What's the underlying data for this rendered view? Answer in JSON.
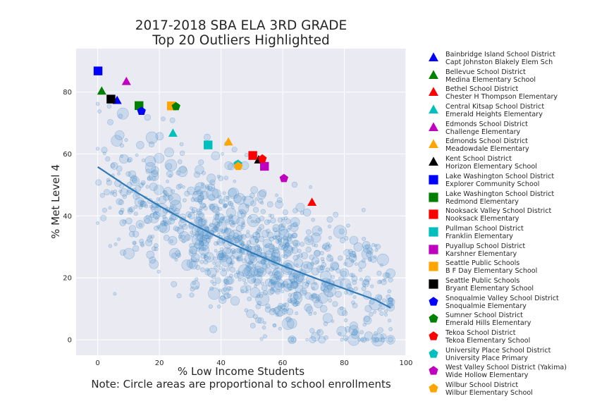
{
  "chart_data": {
    "type": "scatter",
    "title_line1": "2017-2018 SBA ELA 3RD GRADE",
    "title_line2": "Top 20 Outliers Highlighted",
    "xlabel": "% Low Income Students",
    "ylabel": "% Met Level 4",
    "note": "Note: Circle areas are proportional to school enrollments",
    "xlim": [
      -7,
      100
    ],
    "ylim": [
      -5,
      94
    ],
    "xticks": [
      0,
      20,
      40,
      60,
      80,
      100
    ],
    "yticks": [
      0,
      20,
      40,
      60,
      80
    ],
    "grid": true,
    "trend_line": {
      "x": [
        0,
        10,
        20,
        30,
        40,
        50,
        60,
        70,
        80,
        90,
        95
      ],
      "y": [
        55.8,
        49.2,
        43.2,
        37.7,
        32.7,
        28.1,
        23.9,
        20.1,
        16.5,
        12.9,
        10.3
      ]
    },
    "background_scatter_note": "Over 1000 schools plotted as translucent blue circles",
    "outliers": [
      {
        "district": "Bainbridge Island School District",
        "school": "Capt Johnston Blakely Elem Sch",
        "marker": "triangle",
        "color": "#0000ff",
        "x": 6.3,
        "y": 77.2
      },
      {
        "district": "Bellevue School District",
        "school": "Medina Elementary School",
        "marker": "triangle",
        "color": "#008000",
        "x": 1.3,
        "y": 80.2
      },
      {
        "district": "Bethel School District",
        "school": "Chester H Thompson Elementary",
        "marker": "triangle",
        "color": "#ff0000",
        "x": 69.5,
        "y": 44.3
      },
      {
        "district": "Central Kitsap School District",
        "school": "Emerald Heights Elementary",
        "marker": "triangle",
        "color": "#00bfbf",
        "x": 24.4,
        "y": 66.6
      },
      {
        "district": "Edmonds School District",
        "school": "Challenge Elementary",
        "marker": "triangle",
        "color": "#bf00bf",
        "x": 9.3,
        "y": 83.3
      },
      {
        "district": "Edmonds School District",
        "school": "Meadowdale Elementary",
        "marker": "triangle",
        "color": "#ffa500",
        "x": 42.4,
        "y": 63.8
      },
      {
        "district": "Kent School District",
        "school": "Horizon Elementary School",
        "marker": "triangle",
        "color": "#000000",
        "x": 52.2,
        "y": 58.0
      },
      {
        "district": "Lake Washington School District",
        "school": "Explorer Community School",
        "marker": "square",
        "color": "#0000ff",
        "x": 0.1,
        "y": 86.8
      },
      {
        "district": "Lake Washington School District",
        "school": "Redmond Elementary",
        "marker": "square",
        "color": "#008000",
        "x": 13.4,
        "y": 75.6
      },
      {
        "district": "Nooksack Valley School District",
        "school": "Nooksack Elementary",
        "marker": "square",
        "color": "#ff0000",
        "x": 50.3,
        "y": 59.5
      },
      {
        "district": "Pullman School District",
        "school": "Franklin Elementary",
        "marker": "square",
        "color": "#00bfbf",
        "x": 35.8,
        "y": 62.9
      },
      {
        "district": "Puyallup School District",
        "school": "Karshner Elementary",
        "marker": "square",
        "color": "#bf00bf",
        "x": 54.1,
        "y": 56.0
      },
      {
        "district": "Seattle Public Schools",
        "school": "B F Day Elementary School",
        "marker": "square",
        "color": "#ffa500",
        "x": 23.9,
        "y": 75.5
      },
      {
        "district": "Seattle Public Schools",
        "school": "Bryant Elementary School",
        "marker": "square",
        "color": "#000000",
        "x": 4.3,
        "y": 77.7
      },
      {
        "district": "Snoqualmie Valley School District",
        "school": "Snoqualmie Elementary",
        "marker": "pentagon",
        "color": "#0000ff",
        "x": 14.2,
        "y": 73.8
      },
      {
        "district": "Sumner School District",
        "school": "Emerald Hills Elementary",
        "marker": "pentagon",
        "color": "#008000",
        "x": 25.4,
        "y": 75.3
      },
      {
        "district": "Tekoa School District",
        "school": "Tekoa Elementary School",
        "marker": "pentagon",
        "color": "#ff0000",
        "x": 53.4,
        "y": 58.4
      },
      {
        "district": "University Place School District",
        "school": "University Place Primary",
        "marker": "pentagon",
        "color": "#00bfbf",
        "x": 45.5,
        "y": 56.7
      },
      {
        "district": "West Valley School District (Yakima)",
        "school": "Wide Hollow Elementary",
        "marker": "pentagon",
        "color": "#bf00bf",
        "x": 60.4,
        "y": 52.1
      },
      {
        "district": "Wilbur School District",
        "school": "Wilbur Elementary School",
        "marker": "pentagon",
        "color": "#ffa500",
        "x": 45.6,
        "y": 56.0
      }
    ]
  }
}
